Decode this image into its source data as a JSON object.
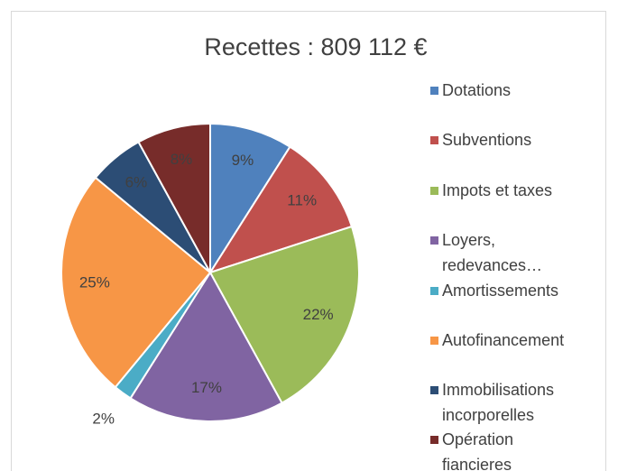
{
  "chart_data": {
    "type": "pie",
    "title": "Recettes : 809 112 €",
    "categories": [
      "Dotations",
      "Subventions",
      "Impots et taxes",
      "Loyers, redevances…",
      "Amortissements",
      "Autofinancement",
      "Immobilisations incorporelles",
      "Opération fiancieres"
    ],
    "values": [
      9,
      11,
      22,
      17,
      2,
      25,
      6,
      8
    ],
    "value_labels": [
      "9%",
      "11%",
      "22%",
      "17%",
      "2%",
      "25%",
      "6%",
      "8%"
    ],
    "colors": [
      "#4f81bd",
      "#c0504d",
      "#9bbb59",
      "#8064a2",
      "#4bacc6",
      "#f79646",
      "#2c4d75",
      "#772c2a"
    ],
    "legend": "right"
  }
}
